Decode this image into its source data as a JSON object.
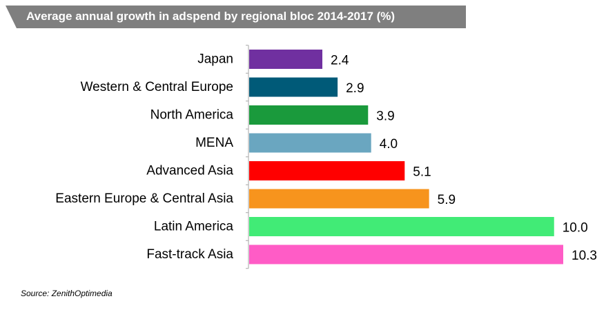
{
  "chart_data": {
    "type": "bar",
    "orientation": "horizontal",
    "title": "Average annual growth in adspend by regional bloc 2014-2017 (%)",
    "categories": [
      "Japan",
      "Western & Central Europe",
      "North America",
      "MENA",
      "Advanced Asia",
      "Eastern Europe & Central Asia",
      "Latin America",
      "Fast-track Asia"
    ],
    "values": [
      2.4,
      2.9,
      3.9,
      4.0,
      5.1,
      5.9,
      10.0,
      10.3
    ],
    "value_labels": [
      "2.4",
      "2.9",
      "3.9",
      "4.0",
      "5.1",
      "5.9",
      "10.0",
      "10.3"
    ],
    "colors": [
      "#7030a0",
      "#005a78",
      "#1a9a3c",
      "#6aa6c0",
      "#ff0000",
      "#f7941d",
      "#41eb76",
      "#ff5cc6"
    ],
    "xlim": [
      0,
      10.3
    ],
    "grid": false,
    "legend": "none"
  },
  "source": "Source: ZenithOptimedia"
}
